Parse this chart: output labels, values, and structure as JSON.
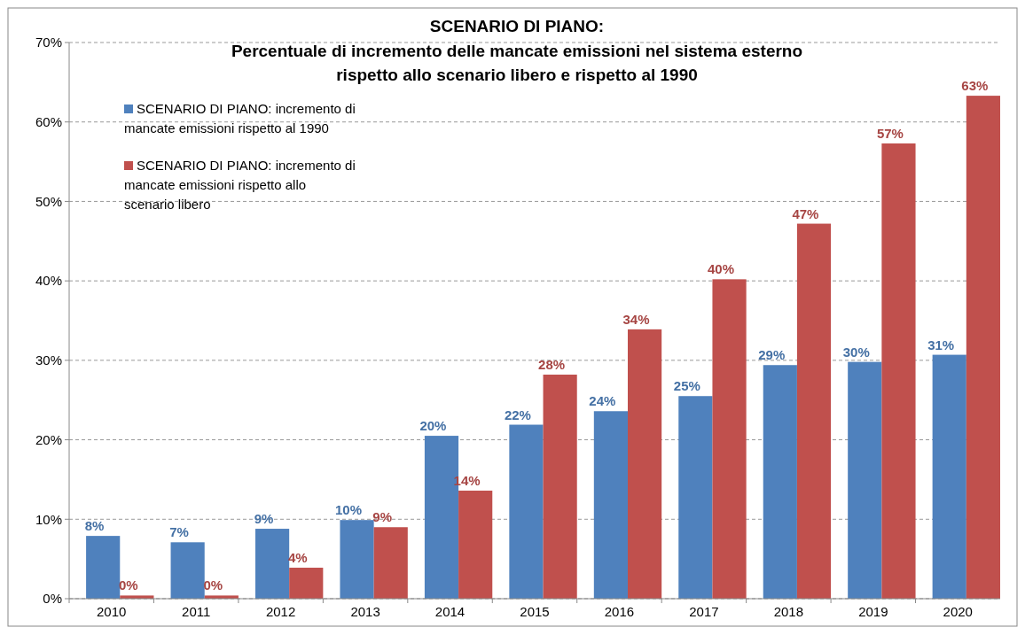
{
  "chart_data": {
    "type": "bar",
    "title": "SCENARIO DI PIANO:",
    "subtitle": "Percentuale di incremento delle mancate emissioni nel sistema esterno rispetto allo scenario libero e rispetto al 1990",
    "categories": [
      "2010",
      "2011",
      "2012",
      "2013",
      "2014",
      "2015",
      "2016",
      "2017",
      "2018",
      "2019",
      "2020"
    ],
    "series": [
      {
        "name": "SCENARIO DI PIANO: incremento di mancate emissioni rispetto al 1990",
        "color": "#4f81bd",
        "values": [
          7.9,
          7.1,
          8.8,
          9.9,
          20.5,
          21.9,
          23.6,
          25.5,
          29.4,
          29.8,
          30.7
        ],
        "value_labels": [
          "8%",
          "7%",
          "9%",
          "10%",
          "20%",
          "22%",
          "24%",
          "25%",
          "29%",
          "30%",
          "31%"
        ]
      },
      {
        "name": "SCENARIO DI PIANO: incremento di mancate emissioni rispetto allo scenario libero",
        "color": "#c0504d",
        "values": [
          0.4,
          0.4,
          3.9,
          9.0,
          13.6,
          28.2,
          33.9,
          40.2,
          47.2,
          57.3,
          63.3
        ],
        "value_labels": [
          "0%",
          "0%",
          "4%",
          "9%",
          "14%",
          "28%",
          "34%",
          "40%",
          "47%",
          "57%",
          "63%"
        ]
      }
    ],
    "ylim": [
      0,
      70
    ],
    "yticks": [
      {
        "value": 0,
        "label": "0%"
      },
      {
        "value": 10,
        "label": "10%"
      },
      {
        "value": 20,
        "label": "20%"
      },
      {
        "value": 30,
        "label": "30%"
      },
      {
        "value": 40,
        "label": "40%"
      },
      {
        "value": 50,
        "label": "50%"
      },
      {
        "value": 60,
        "label": "60%"
      },
      {
        "value": 70,
        "label": "70%"
      }
    ],
    "grid": "y",
    "legend": "top left"
  }
}
